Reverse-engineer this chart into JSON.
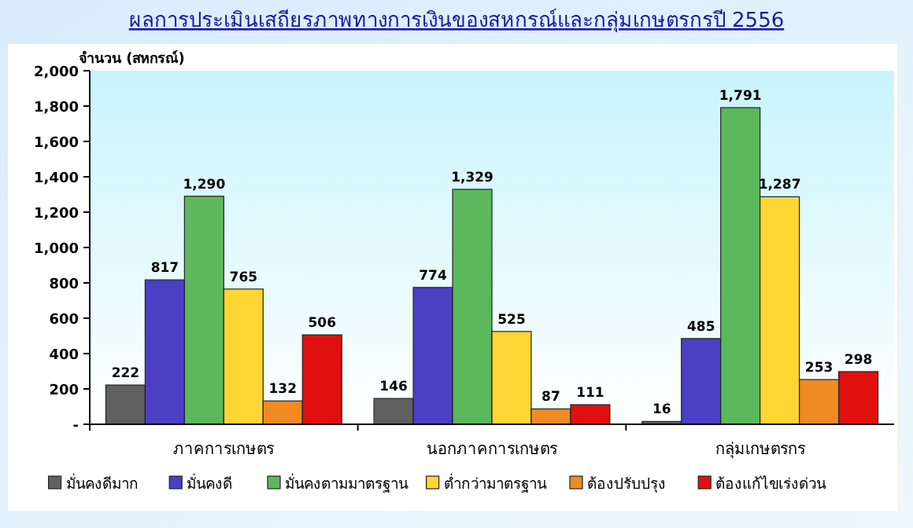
{
  "chart_data": {
    "type": "bar",
    "title": "ผลการประเมินเสถียรภาพทางการเงินของสหกรณ์และกลุ่มเกษตรกรปี 2556",
    "ylabel": "จำนวน (สหกรณ์)",
    "categories": [
      "ภาคการเกษตร",
      "นอกภาคการเกษตร",
      "กลุ่มเกษตรกร"
    ],
    "series": [
      {
        "name": "มั่นคงดีมาก",
        "color": "#606060",
        "values": [
          222,
          146,
          16
        ],
        "value_labels": [
          "222",
          "146",
          "16"
        ]
      },
      {
        "name": "มั่นคงดี",
        "color": "#4b3fc4",
        "values": [
          817,
          774,
          485
        ],
        "value_labels": [
          "817",
          "774",
          "485"
        ]
      },
      {
        "name": "มั่นคงตามมาตรฐาน",
        "color": "#5cb85c",
        "values": [
          1290,
          1329,
          1791
        ],
        "value_labels": [
          "1,290",
          "1,329",
          "1,791"
        ]
      },
      {
        "name": "ต่ำกว่ามาตรฐาน",
        "color": "#ffd633",
        "values": [
          765,
          525,
          1287
        ],
        "value_labels": [
          "765",
          "525",
          "1,287"
        ]
      },
      {
        "name": "ต้องปรับปรุง",
        "color": "#f08a24",
        "values": [
          132,
          87,
          253
        ],
        "value_labels": [
          "132",
          "87",
          "253"
        ]
      },
      {
        "name": "ต้องแก้ไขเร่งด่วน",
        "color": "#e01010",
        "values": [
          506,
          111,
          298
        ],
        "value_labels": [
          "506",
          "111",
          "298"
        ]
      }
    ],
    "ylim": [
      0,
      2000
    ],
    "yticks": [
      {
        "value": 0,
        "label": "-"
      },
      {
        "value": 200,
        "label": "200"
      },
      {
        "value": 400,
        "label": "400"
      },
      {
        "value": 600,
        "label": "600"
      },
      {
        "value": 800,
        "label": "800"
      },
      {
        "value": 1000,
        "label": "1,000"
      },
      {
        "value": 1200,
        "label": "1,200"
      },
      {
        "value": 1400,
        "label": "1,400"
      },
      {
        "value": 1600,
        "label": "1,600"
      },
      {
        "value": 1800,
        "label": "1,800"
      },
      {
        "value": 2000,
        "label": "2,000"
      }
    ],
    "legend": "bottom",
    "grid": false
  }
}
